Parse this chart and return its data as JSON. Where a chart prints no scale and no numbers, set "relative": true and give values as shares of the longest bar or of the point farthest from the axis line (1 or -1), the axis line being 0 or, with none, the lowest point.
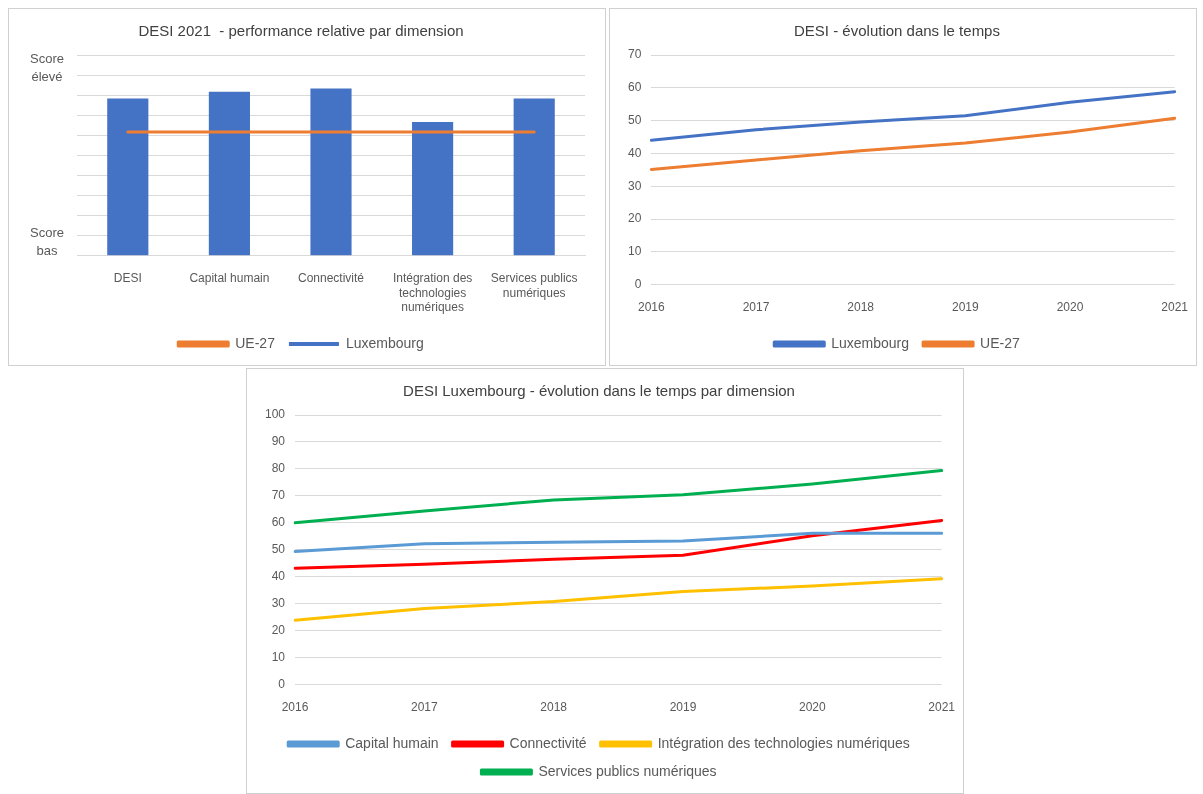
{
  "chart_data": [
    {
      "type": "bar",
      "title": "DESI 2021  - performance relative par dimension",
      "relative": true,
      "grid": true,
      "legend": "bottom",
      "annotations": [
        "Score élevé",
        "Score bas"
      ],
      "categories": [
        "DESI",
        "Capital humain",
        "Connectivité",
        "Intégration des technologies numériques",
        "Services publics numériques"
      ],
      "series": [
        {
          "name": "Luxembourg",
          "color": "#4472c4",
          "values": [
            0.94,
            0.98,
            1,
            0.8,
            0.94
          ]
        },
        {
          "name": "UE-27",
          "type": "line",
          "color": "#ed7d31",
          "values": [
            0.74,
            0.74,
            0.74,
            0.74,
            0.74
          ]
        }
      ]
    },
    {
      "type": "line",
      "title": "DESI - évolution dans le temps",
      "grid": "y",
      "legend": "bottom",
      "categories": [
        "2016",
        "2017",
        "2018",
        "2019",
        "2020",
        "2021"
      ],
      "ylim": [
        0,
        70
      ],
      "yticks": [
        0,
        10,
        20,
        30,
        40,
        50,
        60,
        70
      ],
      "series": [
        {
          "name": "Luxembourg",
          "color": "#4472c4",
          "values": [
            44,
            47.2,
            49.6,
            51.5,
            55.6,
            58.8
          ]
        },
        {
          "name": "UE-27",
          "color": "#ed7d31",
          "values": [
            35.1,
            38,
            40.8,
            43.2,
            46.5,
            50.7
          ]
        }
      ]
    },
    {
      "type": "line",
      "title": "DESI Luxembourg - évolution dans le temps par dimension",
      "grid": "y",
      "legend": "bottom",
      "categories": [
        "2016",
        "2017",
        "2018",
        "2019",
        "2020",
        "2021"
      ],
      "ylim": [
        0,
        100
      ],
      "yticks": [
        0,
        10,
        20,
        30,
        40,
        50,
        60,
        70,
        80,
        90,
        100
      ],
      "series": [
        {
          "name": "Capital humain",
          "color": "#5b9bd5",
          "values": [
            49.4,
            52.2,
            52.8,
            53.3,
            56.1,
            56.1
          ]
        },
        {
          "name": "Connectivité",
          "color": "#ff0000",
          "values": [
            43.2,
            44.6,
            46.5,
            48,
            55.2,
            60.9
          ]
        },
        {
          "name": "Intégration des technologies numériques",
          "color": "#ffc000",
          "values": [
            23.9,
            28.2,
            30.8,
            34.5,
            36.6,
            39.3
          ]
        },
        {
          "name": "Services publics numériques",
          "color": "#00b050",
          "values": [
            60,
            64.4,
            68.5,
            70.4,
            74.4,
            79.4
          ]
        }
      ]
    }
  ]
}
